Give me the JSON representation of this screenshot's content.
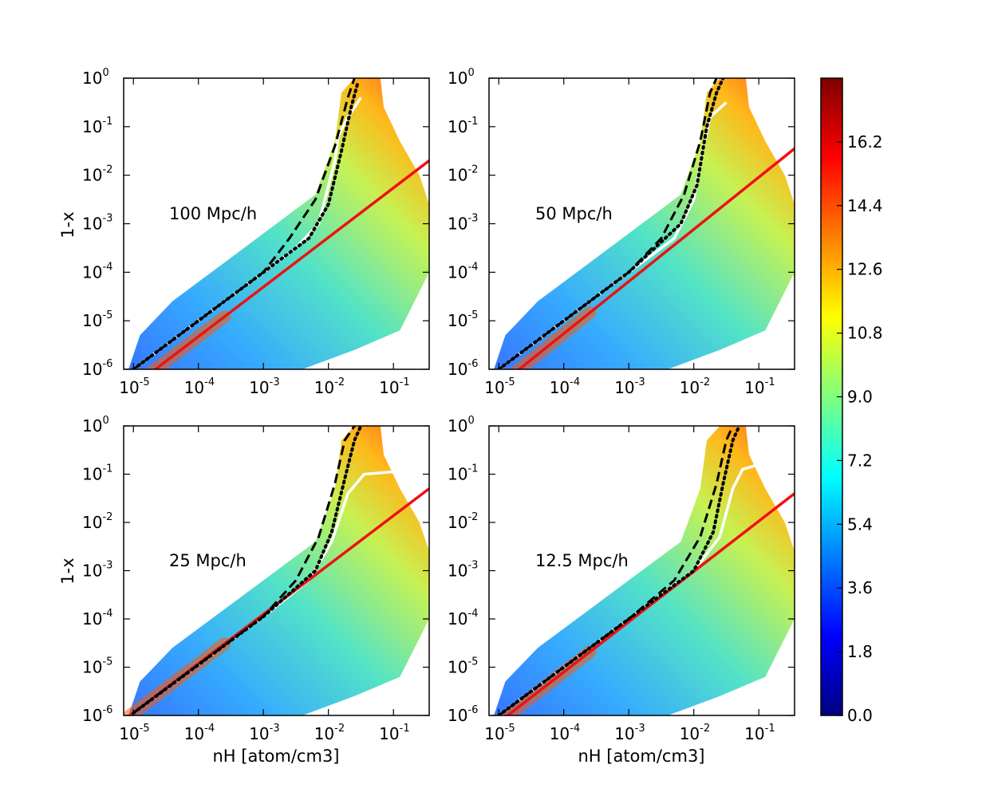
{
  "chart_data": {
    "type": "heatmap",
    "shared": {
      "xlabel": "nH [atom/cm3]",
      "ylabel": "1-x",
      "xscale": "log",
      "yscale": "log",
      "xlim_log10": [
        -5.15,
        -0.45
      ],
      "ylim_log10": [
        -6,
        0
      ],
      "x_ticks": [
        {
          "base": "10",
          "exp": "-5"
        },
        {
          "base": "10",
          "exp": "-4"
        },
        {
          "base": "10",
          "exp": "-3"
        },
        {
          "base": "10",
          "exp": "-2"
        },
        {
          "base": "10",
          "exp": "-1"
        }
      ],
      "y_ticks": [
        {
          "base": "10",
          "exp": "0"
        },
        {
          "base": "10",
          "exp": "-1"
        },
        {
          "base": "10",
          "exp": "-2"
        },
        {
          "base": "10",
          "exp": "-3"
        },
        {
          "base": "10",
          "exp": "-4"
        },
        {
          "base": "10",
          "exp": "-5"
        },
        {
          "base": "10",
          "exp": "-6"
        }
      ]
    },
    "colorbar": {
      "min": 0.0,
      "max": 18.0,
      "ticks": [
        "0.0",
        "1.8",
        "3.6",
        "5.4",
        "7.2",
        "9.0",
        "10.8",
        "12.6",
        "14.4",
        "16.2"
      ],
      "colormap": [
        "#00007f",
        "#0000ff",
        "#007fff",
        "#00ffff",
        "#7fff7f",
        "#ffff00",
        "#ff7f00",
        "#ff0000",
        "#7f0000"
      ]
    },
    "panels": [
      {
        "label": "100 Mpc/h",
        "red_fit": [
          [
            -5.15,
            -6.5
          ],
          [
            -0.45,
            -1.7
          ]
        ],
        "white_median": [
          [
            -5.0,
            -6.0
          ],
          [
            -4.0,
            -5.0
          ],
          [
            -3.0,
            -4.0
          ],
          [
            -2.5,
            -3.5
          ],
          [
            -2.15,
            -3.0
          ],
          [
            -1.9,
            -1.7
          ],
          [
            -1.85,
            -1.2
          ],
          [
            -1.7,
            -0.8
          ],
          [
            -1.5,
            -0.4
          ]
        ],
        "black_dotted": [
          [
            -5.0,
            -6.0
          ],
          [
            -4.0,
            -5.0
          ],
          [
            -3.0,
            -4.0
          ],
          [
            -2.3,
            -3.3
          ],
          [
            -2.0,
            -2.6
          ],
          [
            -1.8,
            -1.5
          ],
          [
            -1.65,
            -0.6
          ],
          [
            -1.55,
            -0.1
          ]
        ],
        "black_dashed": [
          [
            -5.0,
            -6.0
          ],
          [
            -4.0,
            -5.0
          ],
          [
            -3.0,
            -4.0
          ],
          [
            -2.6,
            -3.3
          ],
          [
            -2.2,
            -2.5
          ],
          [
            -1.9,
            -1.4
          ],
          [
            -1.7,
            -0.4
          ],
          [
            -1.6,
            0.0
          ]
        ]
      },
      {
        "label": "50 Mpc/h",
        "red_fit": [
          [
            -5.15,
            -6.5
          ],
          [
            -0.45,
            -1.45
          ]
        ],
        "white_median": [
          [
            -5.0,
            -6.0
          ],
          [
            -4.0,
            -5.0
          ],
          [
            -3.0,
            -4.0
          ],
          [
            -2.3,
            -3.3
          ],
          [
            -2.0,
            -2.5
          ],
          [
            -1.85,
            -1.4
          ],
          [
            -1.75,
            -0.8
          ],
          [
            -1.5,
            -0.5
          ]
        ],
        "black_dotted": [
          [
            -5.0,
            -6.0
          ],
          [
            -4.0,
            -5.0
          ],
          [
            -3.0,
            -4.0
          ],
          [
            -2.2,
            -3.0
          ],
          [
            -1.95,
            -2.2
          ],
          [
            -1.8,
            -1.0
          ],
          [
            -1.65,
            -0.3
          ],
          [
            -1.55,
            0.0
          ]
        ],
        "black_dashed": [
          [
            -5.0,
            -6.0
          ],
          [
            -4.0,
            -5.0
          ],
          [
            -3.0,
            -4.0
          ],
          [
            -2.5,
            -3.3
          ],
          [
            -2.15,
            -2.4
          ],
          [
            -1.9,
            -1.3
          ],
          [
            -1.75,
            -0.3
          ],
          [
            -1.65,
            0.0
          ]
        ]
      },
      {
        "label": "25 Mpc/h",
        "red_fit": [
          [
            -5.15,
            -6.1
          ],
          [
            -0.45,
            -1.3
          ]
        ],
        "white_median": [
          [
            -5.0,
            -5.95
          ],
          [
            -4.0,
            -4.95
          ],
          [
            -3.0,
            -3.95
          ],
          [
            -2.3,
            -3.2
          ],
          [
            -1.95,
            -2.4
          ],
          [
            -1.7,
            -1.4
          ],
          [
            -1.45,
            -1.0
          ],
          [
            -1.0,
            -0.95
          ],
          [
            -0.45,
            -0.95
          ]
        ],
        "black_dotted": [
          [
            -5.0,
            -5.95
          ],
          [
            -4.0,
            -4.95
          ],
          [
            -3.0,
            -3.95
          ],
          [
            -2.2,
            -3.0
          ],
          [
            -1.95,
            -2.2
          ],
          [
            -1.75,
            -1.1
          ],
          [
            -1.6,
            -0.3
          ],
          [
            -1.5,
            0.0
          ]
        ],
        "black_dashed": [
          [
            -5.0,
            -5.95
          ],
          [
            -4.0,
            -4.95
          ],
          [
            -3.0,
            -3.95
          ],
          [
            -2.5,
            -3.2
          ],
          [
            -2.15,
            -2.3
          ],
          [
            -1.9,
            -1.2
          ],
          [
            -1.75,
            -0.3
          ],
          [
            -1.6,
            0.0
          ]
        ]
      },
      {
        "label": "12.5 Mpc/h",
        "red_fit": [
          [
            -5.15,
            -6.3
          ],
          [
            -0.45,
            -1.4
          ]
        ],
        "white_median": [
          [
            -5.0,
            -6.0
          ],
          [
            -4.0,
            -5.0
          ],
          [
            -3.0,
            -4.0
          ],
          [
            -2.0,
            -3.0
          ],
          [
            -1.6,
            -2.3
          ],
          [
            -1.4,
            -1.3
          ],
          [
            -1.25,
            -0.9
          ],
          [
            -1.0,
            -0.8
          ],
          [
            -0.5,
            -0.65
          ]
        ],
        "black_dotted": [
          [
            -5.0,
            -6.0
          ],
          [
            -4.0,
            -5.0
          ],
          [
            -3.0,
            -4.0
          ],
          [
            -2.0,
            -3.0
          ],
          [
            -1.7,
            -2.2
          ],
          [
            -1.55,
            -1.2
          ],
          [
            -1.4,
            -0.3
          ],
          [
            -1.3,
            0.0
          ]
        ],
        "black_dashed": [
          [
            -5.0,
            -6.0
          ],
          [
            -4.0,
            -5.0
          ],
          [
            -3.0,
            -4.0
          ],
          [
            -2.3,
            -3.2
          ],
          [
            -1.9,
            -2.3
          ],
          [
            -1.65,
            -1.2
          ],
          [
            -1.5,
            -0.3
          ],
          [
            -1.4,
            0.0
          ]
        ]
      }
    ]
  }
}
